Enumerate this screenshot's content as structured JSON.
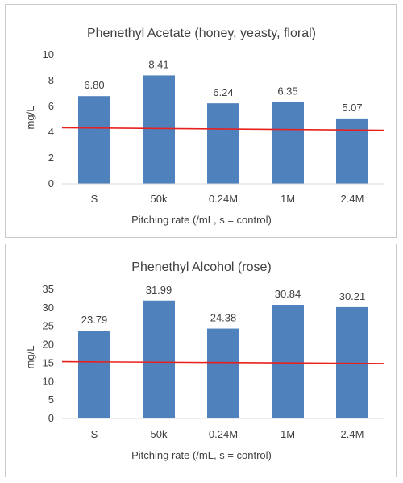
{
  "chart_data": [
    {
      "type": "bar",
      "title": "Phenethyl Acetate (honey, yeasty, floral)",
      "xlabel": "Pitching rate (/mL, s = control)",
      "ylabel": "mg/L",
      "categories": [
        "S",
        "50k",
        "0.24M",
        "1M",
        "2.4M"
      ],
      "values": [
        6.8,
        8.41,
        6.24,
        6.35,
        5.07
      ],
      "value_labels": [
        "6.80",
        "8.41",
        "6.24",
        "6.35",
        "5.07"
      ],
      "ylim": [
        0,
        10
      ],
      "yticks": [
        0,
        2,
        4,
        6,
        8,
        10
      ],
      "reference_line": {
        "y_start": 4.35,
        "y_end": 4.15,
        "color": "#e8211e"
      },
      "bar_color": "#4f81bd",
      "grid": false,
      "legend": "none"
    },
    {
      "type": "bar",
      "title": "Phenethyl Alcohol (rose)",
      "xlabel": "Pitching rate (/mL, s = control)",
      "ylabel": "mg/L",
      "categories": [
        "S",
        "50k",
        "0.24M",
        "1M",
        "2.4M"
      ],
      "values": [
        23.79,
        31.99,
        24.38,
        30.84,
        30.21
      ],
      "value_labels": [
        "23.79",
        "31.99",
        "24.38",
        "30.84",
        "30.21"
      ],
      "ylim": [
        0,
        35
      ],
      "yticks": [
        0,
        5,
        10,
        15,
        20,
        25,
        30,
        35
      ],
      "reference_line": {
        "y_start": 15.4,
        "y_end": 14.9,
        "color": "#e8211e"
      },
      "bar_color": "#4f81bd",
      "grid": false,
      "legend": "none"
    }
  ]
}
